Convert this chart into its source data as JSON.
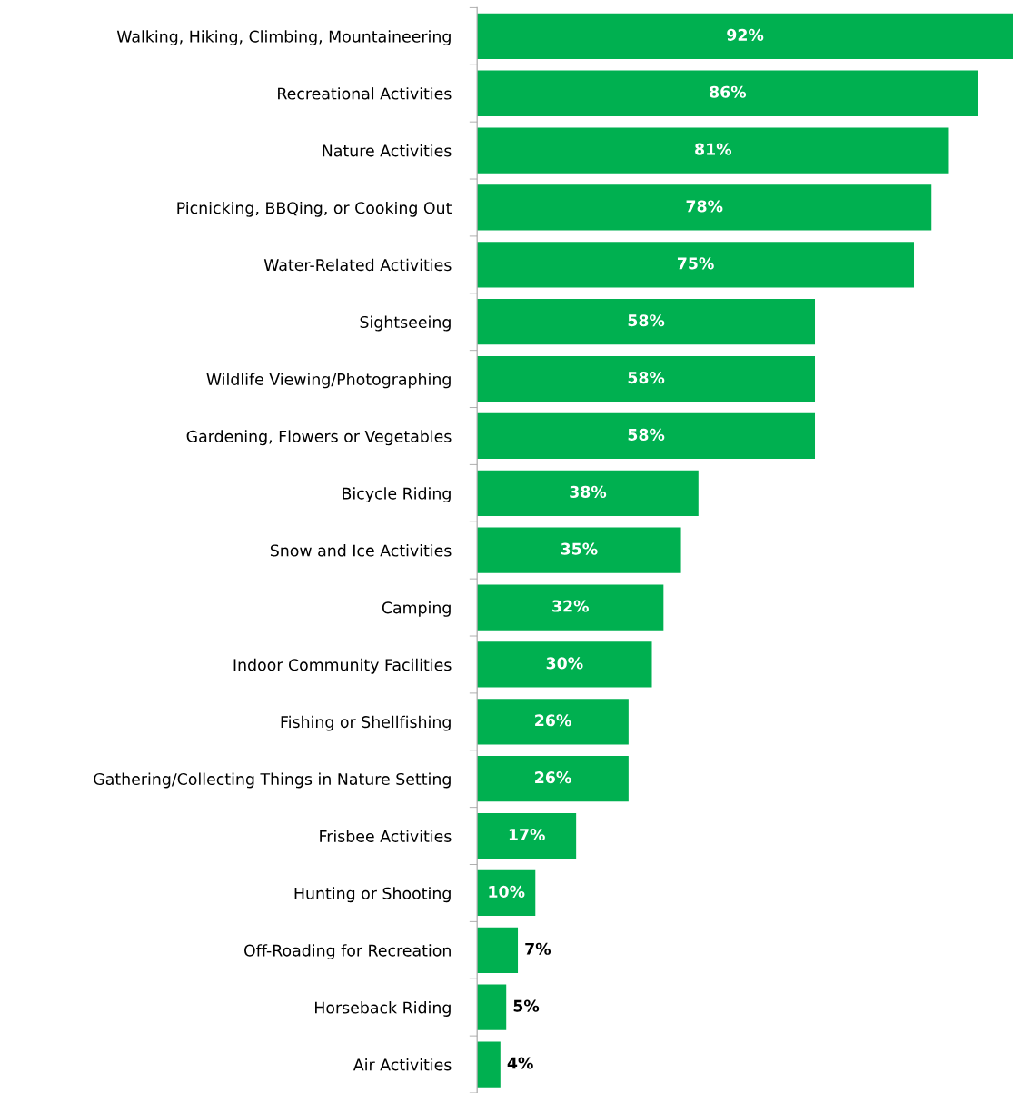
{
  "chart_data": {
    "type": "bar",
    "orientation": "horizontal",
    "color": "#00b050",
    "categories": [
      "Walking, Hiking, Climbing, Mountaineering",
      "Recreational Activities",
      "Nature Activities",
      "Picnicking, BBQing, or Cooking Out",
      "Water-Related Activities",
      "Sightseeing",
      "Wildlife Viewing/Photographing",
      "Gardening, Flowers or Vegetables",
      "Bicycle Riding",
      "Snow and Ice Activities",
      "Camping",
      "Indoor Community Facilities",
      "Fishing or Shellfishing",
      "Gathering/Collecting Things in Nature Setting",
      "Frisbee Activities",
      "Hunting or Shooting",
      "Off-Roading for Recreation",
      "Horseback Riding",
      "Air Activities"
    ],
    "values": [
      92,
      86,
      81,
      78,
      75,
      58,
      58,
      58,
      38,
      35,
      32,
      30,
      26,
      26,
      17,
      10,
      7,
      5,
      4
    ],
    "value_labels": [
      "92%",
      "86%",
      "81%",
      "78%",
      "75%",
      "58%",
      "58%",
      "58%",
      "38%",
      "35%",
      "32%",
      "30%",
      "26%",
      "26%",
      "17%",
      "10%",
      "7%",
      "5%",
      "4%"
    ],
    "xlim": [
      0,
      92
    ],
    "tick_labels": "y",
    "grid": false,
    "legend": false
  }
}
